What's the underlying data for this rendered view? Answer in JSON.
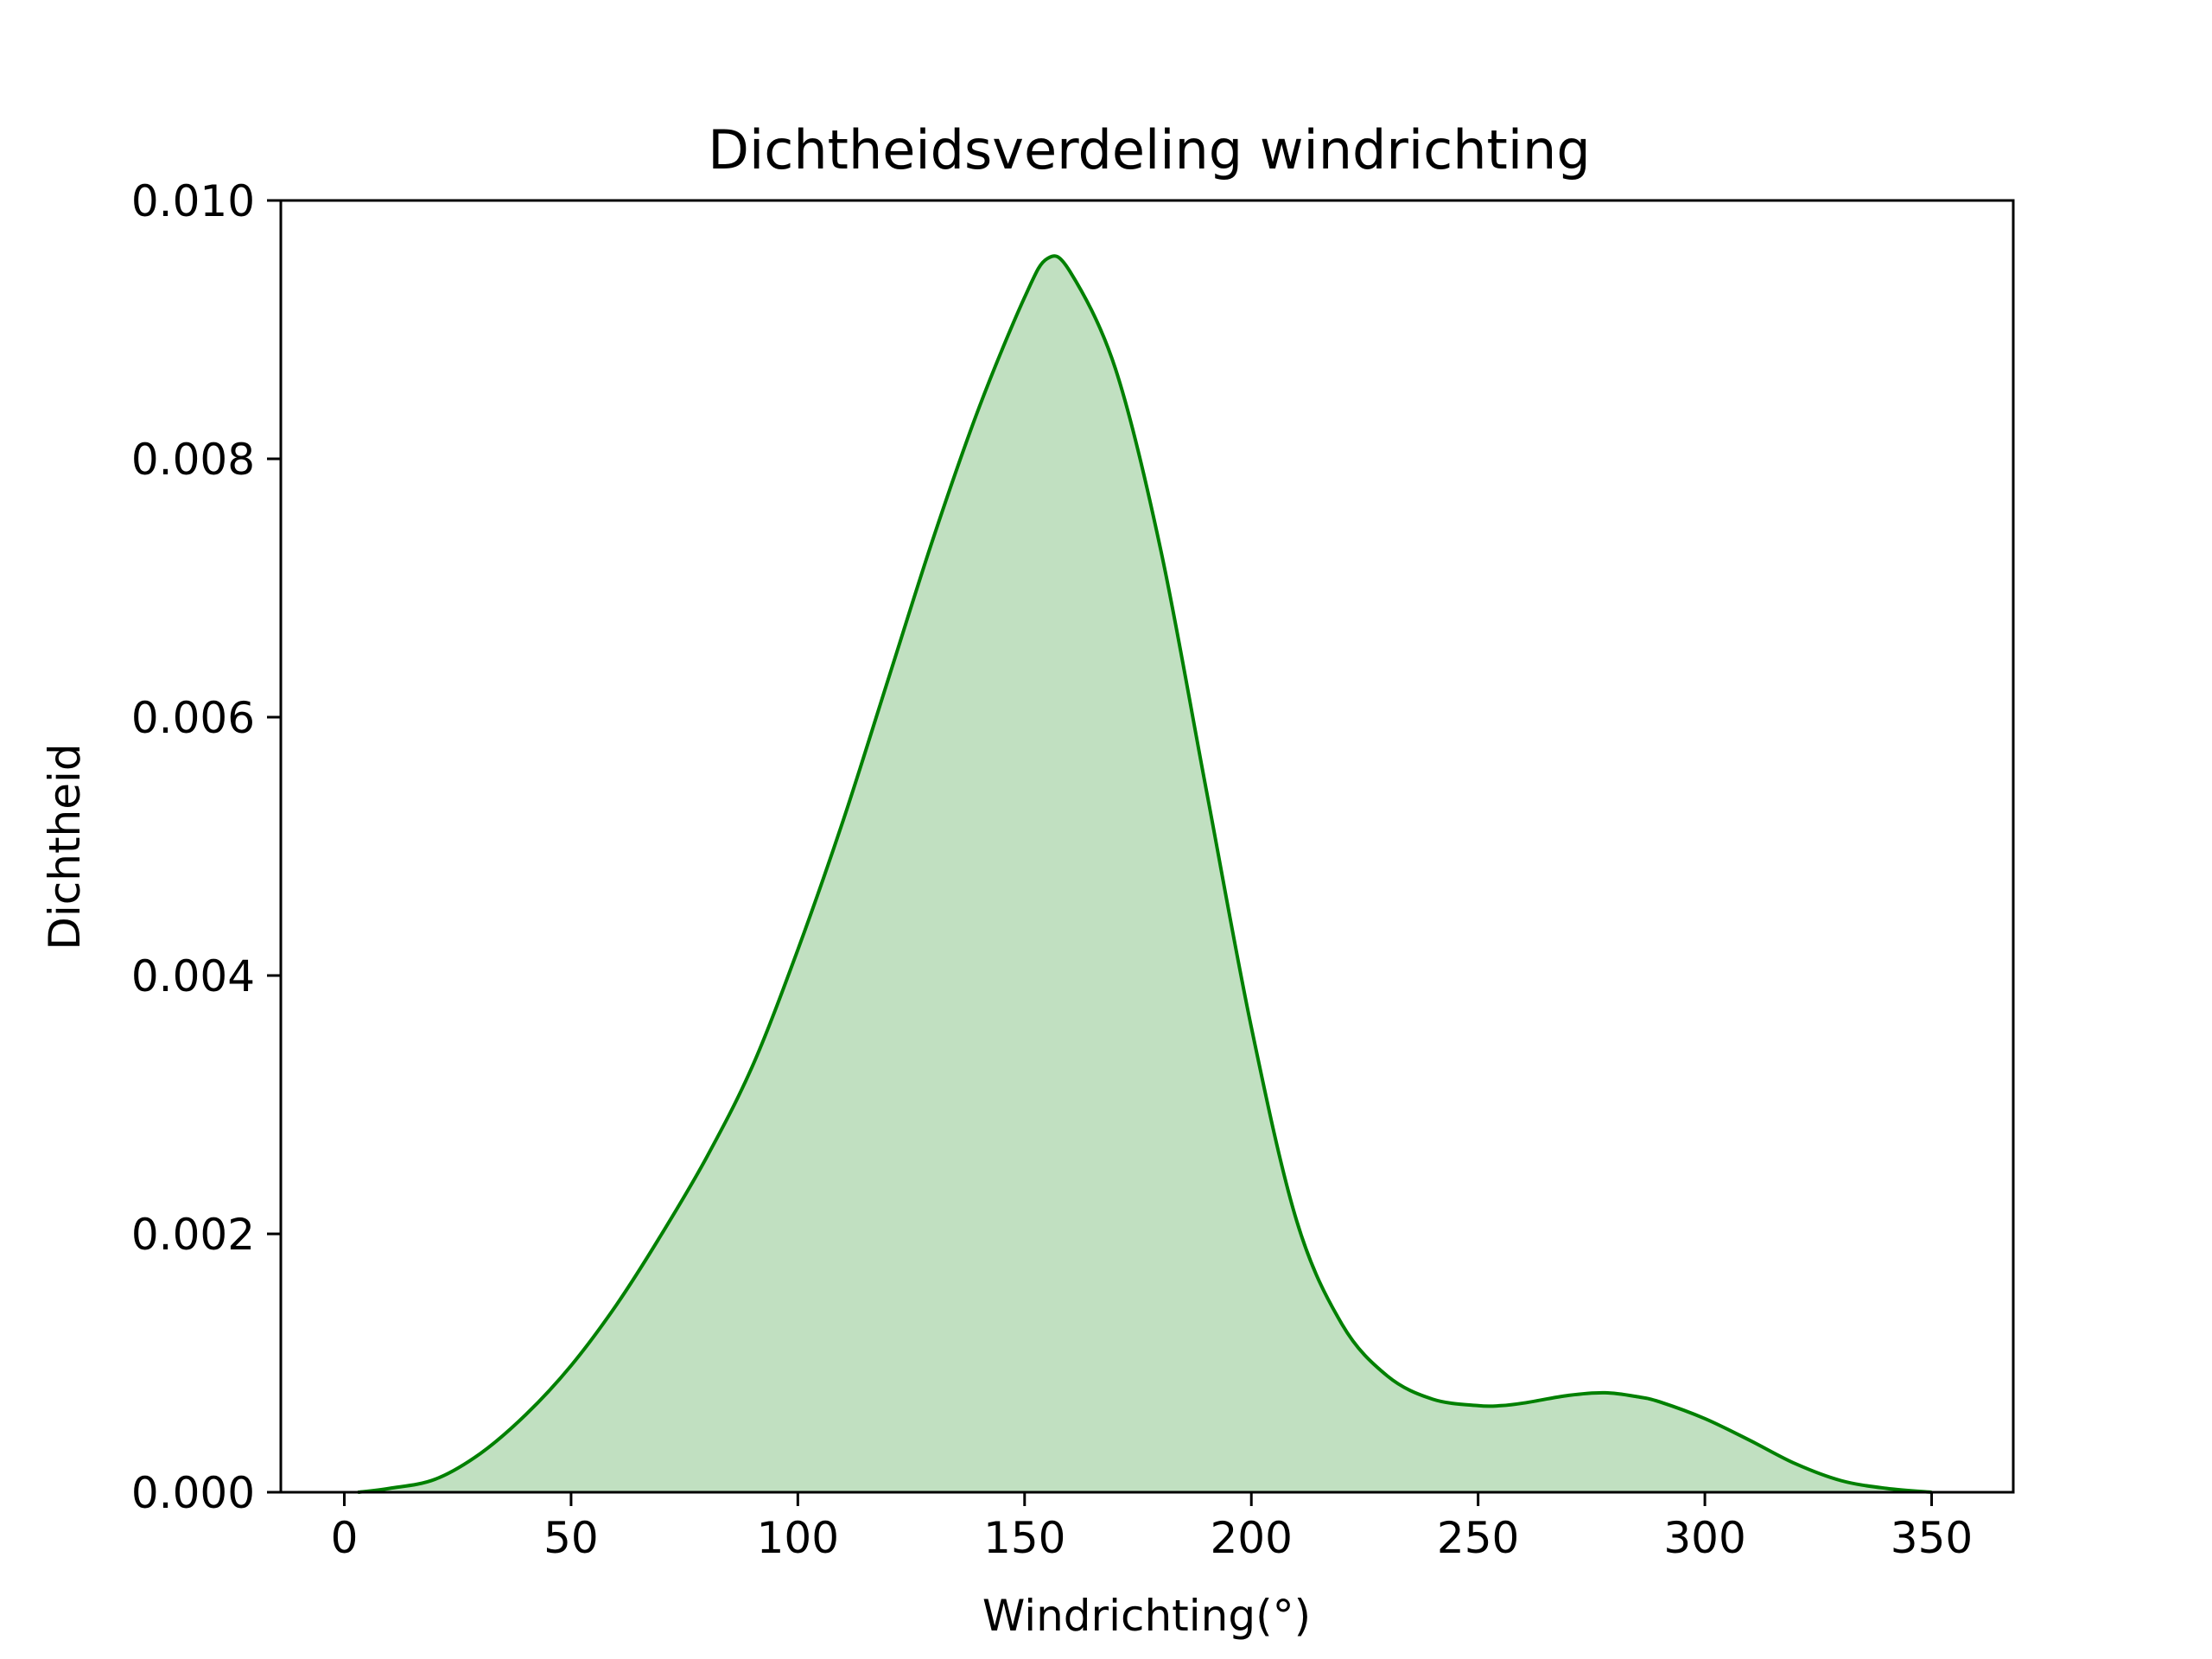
{
  "chart_data": {
    "type": "area",
    "title": "Dichtheidsverdeling windrichting",
    "xlabel": "Windrichting(°)",
    "ylabel": "Dichtheid",
    "xlim": [
      -14,
      368
    ],
    "ylim": [
      0,
      0.01
    ],
    "xticks": [
      0,
      50,
      100,
      150,
      200,
      250,
      300,
      350
    ],
    "yticks": [
      0.0,
      0.002,
      0.004,
      0.006,
      0.008,
      0.01
    ],
    "ytick_labels": [
      "0.000",
      "0.002",
      "0.004",
      "0.006",
      "0.008",
      "0.010"
    ],
    "grid": false,
    "colors": {
      "line": "#008000",
      "fill": "#c1e0c1"
    },
    "x": [
      3,
      10,
      20,
      30,
      40,
      50,
      60,
      70,
      80,
      90,
      100,
      110,
      120,
      130,
      140,
      150,
      155,
      160,
      170,
      180,
      190,
      200,
      210,
      220,
      230,
      240,
      250,
      255,
      260,
      270,
      278,
      285,
      290,
      300,
      310,
      320,
      330,
      340,
      350
    ],
    "y": [
      0.0,
      3e-05,
      0.0001,
      0.0003,
      0.0006,
      0.00098,
      0.00145,
      0.002,
      0.0026,
      0.0033,
      0.0042,
      0.0052,
      0.0063,
      0.0074,
      0.0084,
      0.00925,
      0.00955,
      0.00945,
      0.0087,
      0.0073,
      0.00545,
      0.0036,
      0.0021,
      0.0013,
      0.0009,
      0.00072,
      0.00067,
      0.00067,
      0.00069,
      0.00075,
      0.00077,
      0.00074,
      0.0007,
      0.00057,
      0.0004,
      0.00022,
      9e-05,
      3e-05,
      0.0
    ]
  }
}
